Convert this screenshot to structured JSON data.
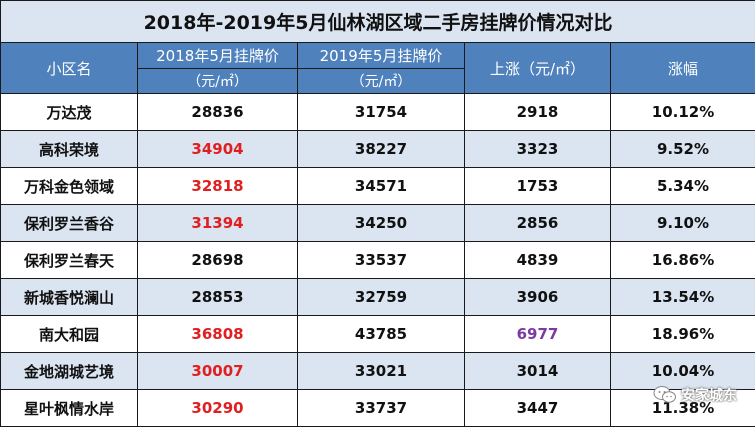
{
  "title": "2018年-2019年5月仙林湖区域二手房挂牌价情况对比",
  "headers": {
    "community": "小区名",
    "price_2018": "2018年5月挂牌价",
    "price_2019": "2019年5月挂牌价",
    "unit": "（元/㎡）",
    "rise": "上涨（元/㎡）",
    "growth": "涨幅"
  },
  "rows": [
    {
      "name": "万达茂",
      "p2018": "28836",
      "p2019": "31754",
      "rise": "2918",
      "pct": "10.12%"
    },
    {
      "name": "高科荣境",
      "p2018": "34904",
      "p2019": "38227",
      "rise": "3323",
      "pct": "9.52%"
    },
    {
      "name": "万科金色领域",
      "p2018": "32818",
      "p2019": "34571",
      "rise": "1753",
      "pct": "5.34%"
    },
    {
      "name": "保利罗兰香谷",
      "p2018": "31394",
      "p2019": "34250",
      "rise": "2856",
      "pct": "9.10%"
    },
    {
      "name": "保利罗兰春天",
      "p2018": "28698",
      "p2019": "33537",
      "rise": "4839",
      "pct": "16.86%"
    },
    {
      "name": "新城香悦澜山",
      "p2018": "28853",
      "p2019": "32759",
      "rise": "3906",
      "pct": "13.54%"
    },
    {
      "name": "南大和园",
      "p2018": "36808",
      "p2019": "43785",
      "rise": "6977",
      "pct": "18.96%"
    },
    {
      "name": "金地湖城艺境",
      "p2018": "30007",
      "p2019": "33021",
      "rise": "3014",
      "pct": "10.04%"
    },
    {
      "name": "星叶枫情水岸",
      "p2018": "30290",
      "p2019": "33737",
      "rise": "3447",
      "pct": "11.38%"
    }
  ],
  "watermark": "安家城东",
  "colors": {
    "header_bg": "#4f81bd",
    "stripe_bg": "#dbe5f1",
    "highlight_red": "#e02020",
    "highlight_purple": "#7a3aa0"
  },
  "icons": {
    "watermark": "wechat-icon"
  }
}
